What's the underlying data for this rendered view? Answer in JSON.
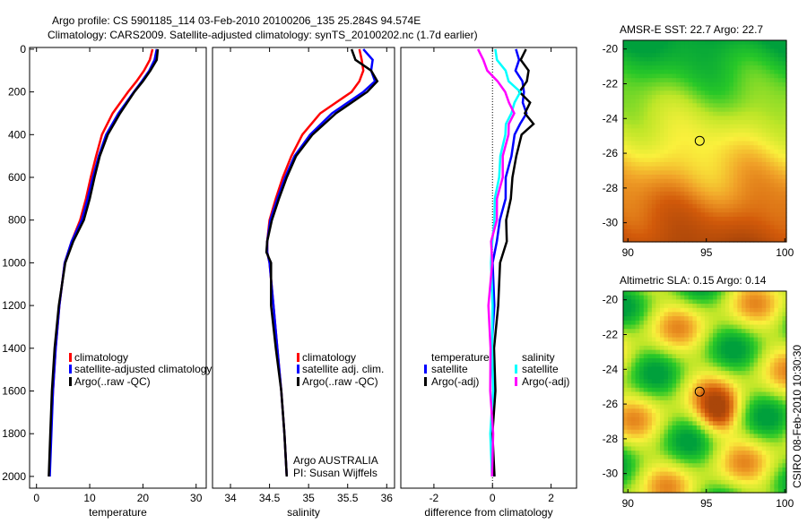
{
  "title_line1": "Argo profile: CS 5901185_114 03-Feb-2010 20100206_135 25.284S 94.574E",
  "title_line2": "Climatology: CARS2009. Satellite-adjusted climatology: synTS_20100202.nc (1.7d earlier)",
  "timestamp": "CSIRO 08-Feb-2010 10:30:30",
  "colors": {
    "red": "#ff0000",
    "blue": "#0000ff",
    "black": "#000000",
    "cyan": "#00ffff",
    "magenta": "#ff00ff"
  },
  "chart_data": [
    {
      "type": "line",
      "xlabel": "temperature",
      "ylabel": "",
      "xlim": [
        -1.3,
        31.9
      ],
      "ylim": [
        2055,
        -8
      ],
      "xticks": [
        0,
        10,
        20,
        30
      ],
      "yticks": [
        0,
        200,
        400,
        600,
        800,
        1000,
        1200,
        1400,
        1600,
        1800,
        2000
      ],
      "depth": [
        0,
        50,
        100,
        150,
        200,
        300,
        400,
        500,
        600,
        700,
        800,
        900,
        1000,
        1200,
        1400,
        1600,
        1800,
        2000
      ],
      "series": [
        {
          "name": "climatology",
          "color": "#ff0000",
          "values": [
            21.8,
            21.3,
            20.2,
            18.8,
            17.2,
            14.3,
            12.3,
            11.2,
            10.2,
            9.3,
            8.2,
            6.6,
            5.3,
            4.3,
            3.6,
            3.1,
            2.7,
            2.4
          ]
        },
        {
          "name": "satellite-adjusted climatology",
          "color": "#0000ff",
          "values": [
            22.6,
            22.2,
            21.2,
            19.8,
            18.3,
            15.4,
            13.1,
            11.7,
            10.6,
            9.6,
            8.5,
            6.6,
            5.3,
            4.3,
            3.6,
            3.1,
            2.8,
            2.5
          ]
        },
        {
          "name": "Argo(..raw -QC)",
          "color": "#000000",
          "values": [
            22.8,
            22.6,
            21.4,
            20.0,
            18.4,
            15.7,
            13.4,
            11.9,
            10.9,
            10.0,
            8.9,
            6.9,
            5.4,
            4.2,
            3.4,
            2.9,
            2.6,
            2.3
          ]
        }
      ],
      "legend": [
        "climatology",
        "satellite-adjusted climatology",
        "Argo(..raw -QC)"
      ],
      "legend_position": "lower-right"
    },
    {
      "type": "line",
      "xlabel": "salinity",
      "ylabel": "",
      "xlim": [
        33.77,
        36.1
      ],
      "ylim": [
        2055,
        -8
      ],
      "xticks": [
        34,
        34.5,
        35,
        35.5,
        36
      ],
      "yticks": [],
      "depth": [
        0,
        50,
        100,
        150,
        200,
        300,
        400,
        500,
        600,
        700,
        800,
        900,
        950,
        1000,
        1200,
        1400,
        1600,
        1800,
        2000
      ],
      "series": [
        {
          "name": "climatology",
          "color": "#ff0000",
          "values": [
            35.65,
            35.68,
            35.7,
            35.65,
            35.55,
            35.15,
            34.92,
            34.78,
            34.67,
            34.58,
            34.5,
            34.47,
            34.47,
            34.5,
            34.55,
            34.6,
            34.65,
            34.69,
            34.72
          ]
        },
        {
          "name": "satellite adj. clim.",
          "color": "#0000ff",
          "values": [
            35.7,
            35.82,
            35.8,
            35.85,
            35.7,
            35.3,
            35.02,
            34.82,
            34.7,
            34.6,
            34.51,
            34.47,
            34.47,
            34.5,
            34.55,
            34.6,
            34.65,
            34.69,
            34.72
          ]
        },
        {
          "name": "Argo(..raw -QC)",
          "color": "#000000",
          "values": [
            35.55,
            35.6,
            35.8,
            35.88,
            35.75,
            35.35,
            35.05,
            34.84,
            34.72,
            34.62,
            34.53,
            34.47,
            34.46,
            34.52,
            34.52,
            34.58,
            34.65,
            34.69,
            34.72
          ]
        }
      ],
      "legend": [
        "climatology",
        "satellite adj. clim.",
        "Argo(..raw -QC)"
      ],
      "legend_position": "lower-right",
      "annotation": [
        "Argo AUSTRALIA",
        "PI: Susan Wijffels"
      ]
    },
    {
      "type": "line",
      "xlabel": "difference from climatology",
      "ylabel": "",
      "xlim": [
        -3.13,
        2.87
      ],
      "ylim": [
        2055,
        -8
      ],
      "xticks": [
        -2,
        0,
        2
      ],
      "yticks": [],
      "depth": [
        0,
        50,
        100,
        150,
        200,
        250,
        300,
        350,
        400,
        500,
        600,
        700,
        800,
        900,
        1000,
        1200,
        1400,
        1600,
        1800,
        2000
      ],
      "series": [
        {
          "name": "temperature satellite",
          "color": "#0000ff",
          "values": [
            0.8,
            0.9,
            0.8,
            1.0,
            1.1,
            1.0,
            1.2,
            0.9,
            0.8,
            0.6,
            0.5,
            0.4,
            0.3,
            0.1,
            0.05,
            0.02,
            0.01,
            0.0,
            0.0,
            0.0
          ]
        },
        {
          "name": "temperature Argo(-adj)",
          "color": "#000000",
          "values": [
            1.1,
            1.0,
            1.2,
            1.2,
            0.9,
            1.3,
            1.1,
            1.4,
            1.0,
            0.8,
            0.7,
            0.6,
            0.5,
            0.45,
            0.3,
            0.15,
            0.1,
            0.05,
            0.05,
            0.02
          ]
        },
        {
          "name": "salinity satellite",
          "color": "#00ffff",
          "values": [
            0.05,
            0.2,
            0.4,
            0.6,
            0.9,
            0.8,
            0.6,
            0.5,
            0.4,
            0.3,
            0.2,
            0.1,
            0.05,
            0.0,
            -0.05,
            0.0,
            0.0,
            0.0,
            -0.05,
            -0.05
          ]
        },
        {
          "name": "salinity Argo(-adj)",
          "color": "#ff00ff",
          "values": [
            -0.5,
            -0.3,
            -0.2,
            0.2,
            0.4,
            0.6,
            0.7,
            0.6,
            0.5,
            0.4,
            0.3,
            0.2,
            0.1,
            0.0,
            -0.05,
            -0.1,
            -0.1,
            -0.05,
            0.0,
            0.0
          ]
        }
      ],
      "legend_temperature_title": "temperature",
      "legend_salinity_title": "salinity",
      "legend": [
        "satellite",
        "Argo(-adj)",
        "satellite",
        "Argo(-adj)"
      ],
      "legend_position": "lower-center"
    },
    {
      "type": "heatmap",
      "title": "AMSR-E SST: 22.7 Argo: 22.7",
      "xlim": [
        89.7,
        100.1
      ],
      "ylim": [
        -31.1,
        -19.5
      ],
      "xticks": [
        90,
        95,
        100
      ],
      "yticks": [
        -20,
        -22,
        -24,
        -26,
        -28,
        -30
      ],
      "marker": {
        "lon": 94.574,
        "lat": -25.284
      }
    },
    {
      "type": "heatmap",
      "title": "Altimetric SLA: 0.15 Argo: 0.14",
      "xlim": [
        89.7,
        100.1
      ],
      "ylim": [
        -31.1,
        -19.5
      ],
      "xticks": [
        90,
        95,
        100
      ],
      "yticks": [
        -20,
        -22,
        -24,
        -26,
        -28,
        -30
      ],
      "marker": {
        "lon": 94.574,
        "lat": -25.284
      }
    }
  ]
}
